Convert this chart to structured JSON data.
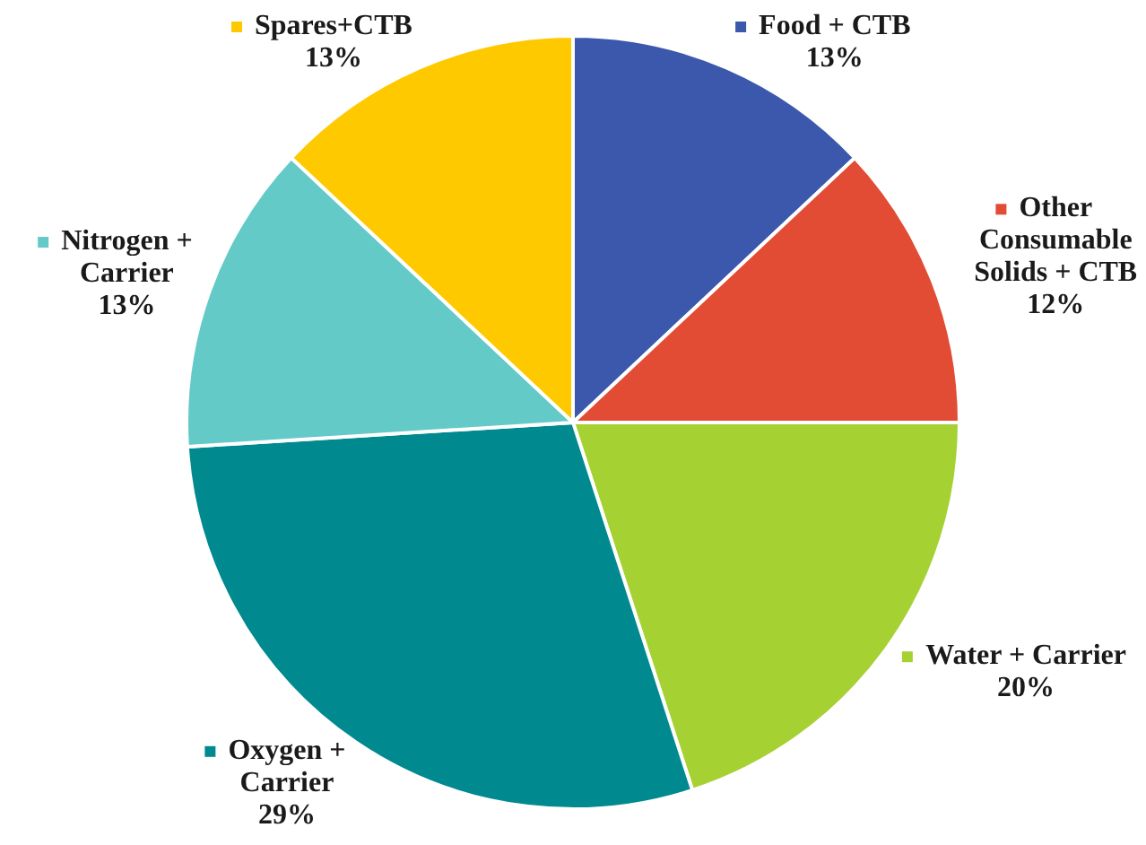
{
  "chart_data": {
    "type": "pie",
    "categories": [
      "Food + CTB",
      "Other Consumable Solids + CTB",
      "Water + Carrier",
      "Oxygen + Carrier",
      "Nitrogen + Carrier",
      "Spares+CTB"
    ],
    "values": [
      13,
      12,
      20,
      29,
      13,
      13
    ],
    "colors": [
      "#3b58ad",
      "#e24c34",
      "#a6d133",
      "#008a90",
      "#63cac8",
      "#ffc900"
    ],
    "value_labels": [
      "13%",
      "12%",
      "20%",
      "29%",
      "13%",
      "13%"
    ],
    "legend": "right"
  }
}
